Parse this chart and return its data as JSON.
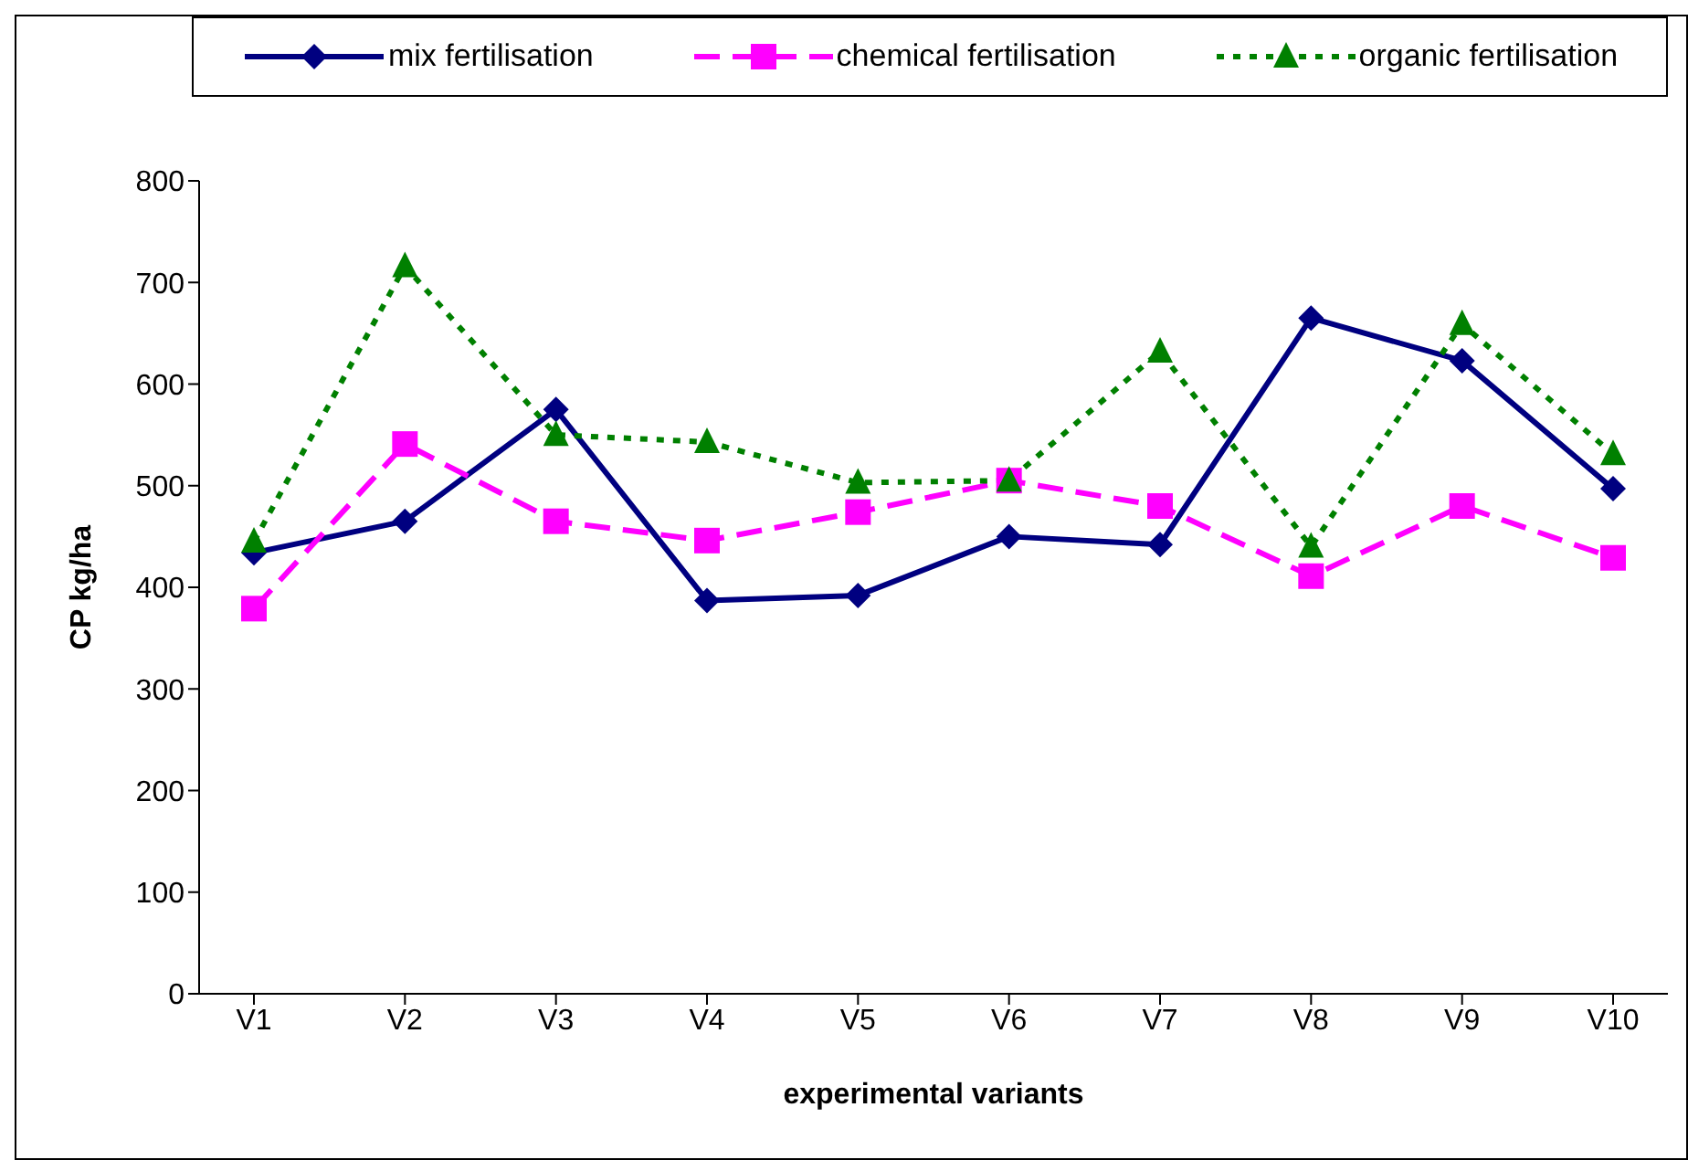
{
  "chart_data": {
    "type": "line",
    "xlabel": "experimental variants",
    "ylabel": "CP kg/ha",
    "categories": [
      "V1",
      "V2",
      "V3",
      "V4",
      "V5",
      "V6",
      "V7",
      "V8",
      "V9",
      "V10"
    ],
    "series": [
      {
        "name": "mix fertilisation",
        "color": "#000080",
        "marker": "diamond",
        "line_style": "solid",
        "values": [
          434,
          465,
          575,
          387,
          392,
          450,
          442,
          665,
          623,
          497
        ]
      },
      {
        "name": "chemical fertilisation",
        "color": "#ff00ff",
        "marker": "square",
        "line_style": "dashed",
        "values": [
          379,
          541,
          465,
          446,
          474,
          505,
          480,
          411,
          480,
          429
        ]
      },
      {
        "name": "organic fertilisation",
        "color": "#008000",
        "marker": "triangle",
        "line_style": "dotted",
        "values": [
          445,
          716,
          550,
          543,
          503,
          505,
          632,
          440,
          659,
          531
        ]
      }
    ],
    "ylim": [
      0,
      800
    ],
    "yticks": [
      0,
      100,
      200,
      300,
      400,
      500,
      600,
      700,
      800
    ],
    "legend": "top"
  }
}
